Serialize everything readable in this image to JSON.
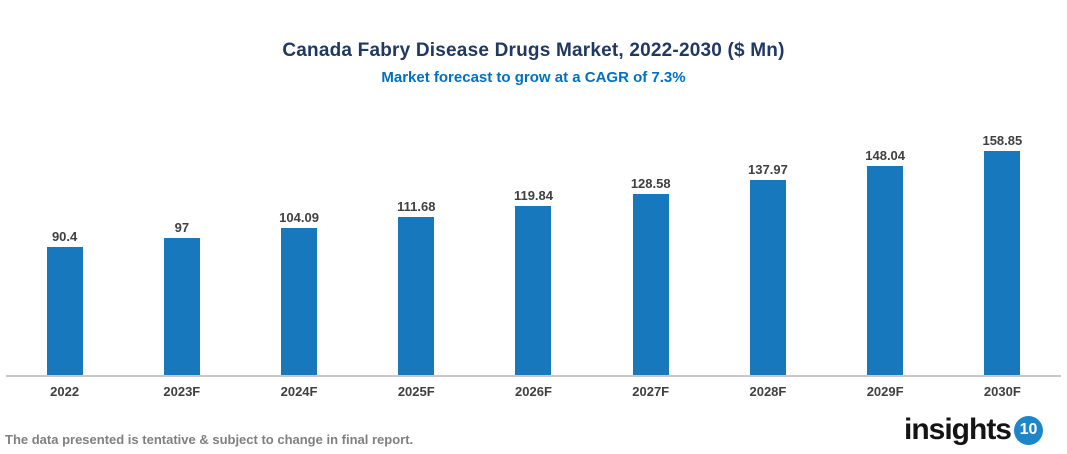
{
  "header": {
    "title": "Canada Fabry Disease Drugs Market, 2022-2030 ($ Mn)",
    "subtitle": "Market forecast to grow at a CAGR of 7.3%"
  },
  "chart_data": {
    "type": "bar",
    "title": "Canada Fabry Disease Drugs Market, 2022-2030 ($ Mn)",
    "subtitle": "Market forecast to grow at a CAGR of 7.3%",
    "categories": [
      "2022",
      "2023F",
      "2024F",
      "2025F",
      "2026F",
      "2027F",
      "2028F",
      "2029F",
      "2030F"
    ],
    "values": [
      90.4,
      97,
      104.09,
      111.68,
      119.84,
      128.58,
      137.97,
      148.04,
      158.85
    ],
    "data_labels": [
      "90.4",
      "97",
      "104.09",
      "111.68",
      "119.84",
      "128.58",
      "137.97",
      "148.04",
      "158.85"
    ],
    "xlabel": "",
    "ylabel": "",
    "ylim": [
      0,
      180
    ],
    "grid": false,
    "legend": false,
    "y_axis_visible": false,
    "data_labels_shown": true
  },
  "footer": {
    "disclaimer": "The data presented is tentative & subject to change in final report.",
    "logo_text": "insights",
    "logo_badge": "10"
  },
  "colors": {
    "title": "#1F3864",
    "subtitle": "#0070C0",
    "bar": "#1878BE",
    "axis_line": "#C9C9C9",
    "label": "#404040",
    "disclaimer": "#808080",
    "logo_badge_bg": "#1C86C8"
  }
}
